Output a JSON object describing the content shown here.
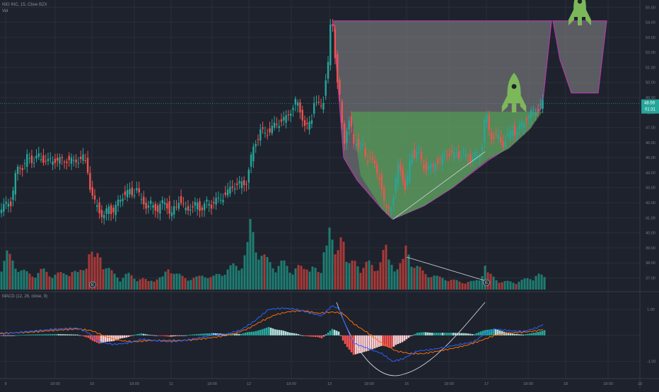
{
  "header": {
    "symbol": "NIO INC, 15, Cboe BZX",
    "volume_label": "Vol"
  },
  "macd_label": "MACD (12, 26, close, 9)",
  "colors": {
    "background": "#1e222d",
    "grid": "#2a2e39",
    "axis_text": "#787b86",
    "up": "#26a69a",
    "down": "#ef5350",
    "volume_up": "#1e7d72",
    "volume_down": "#a83a38",
    "macd_line": "#2962ff",
    "signal_line": "#ff6d00",
    "hist_pos_strong": "#26a69a",
    "hist_pos_weak": "#b2dfdb",
    "hist_neg_strong": "#ef5350",
    "hist_neg_weak": "#ffcdd2",
    "cup_fill": "#8c8c8c",
    "cup_outline": "#b03aa8",
    "green_fill": "#4caf50",
    "rocket": "#7cb85a",
    "price_tag": "#26a69a",
    "drawn_line": "#d1d4dc"
  },
  "icons": [
    "rocket-icon",
    "earnings-marker-icon"
  ],
  "chart_data": {
    "type": "candlestick",
    "y_ticks": [
      "55.00",
      "54.00",
      "53.00",
      "52.00",
      "51.00",
      "50.00",
      "49.00",
      "48.00",
      "47.00",
      "46.00",
      "45.00",
      "44.00",
      "43.00",
      "42.00",
      "41.00",
      "40.00",
      "39.00",
      "38.00",
      "37.00"
    ],
    "y_range": [
      36.6,
      55.2
    ],
    "x_ticks": [
      "9",
      "18:00",
      "10",
      "18:00",
      "11",
      "18:00",
      "12",
      "18:00",
      "13",
      "18:00",
      "16",
      "18:00",
      "17",
      "18:00",
      "18",
      "18:00",
      "19"
    ],
    "last_price": "48.59",
    "countdown": "01:31",
    "macd_ticks": [
      "1.00",
      "0.00",
      "-1.00"
    ],
    "macd_range": [
      -1.5,
      1.3
    ],
    "earnings_markers": [
      "E",
      "E"
    ],
    "price_path": [
      [
        0,
        41.3
      ],
      [
        4,
        41.6
      ],
      [
        8,
        41.7
      ],
      [
        10,
        41.9
      ],
      [
        13,
        42.1
      ],
      [
        17,
        42.0
      ],
      [
        21,
        43.0
      ],
      [
        25,
        44.2
      ],
      [
        30,
        44.5
      ],
      [
        35,
        44.3
      ],
      [
        40,
        45.0
      ],
      [
        45,
        44.9
      ],
      [
        50,
        44.8
      ],
      [
        55,
        45.1
      ],
      [
        60,
        44.9
      ],
      [
        65,
        44.9
      ],
      [
        70,
        44.7
      ],
      [
        75,
        44.8
      ],
      [
        80,
        44.9
      ],
      [
        85,
        44.8
      ],
      [
        90,
        44.8
      ],
      [
        95,
        44.9
      ],
      [
        100,
        44.8
      ],
      [
        105,
        44.7
      ],
      [
        110,
        44.9
      ],
      [
        115,
        44.8
      ],
      [
        120,
        45.0
      ],
      [
        125,
        44.5
      ],
      [
        128,
        43.3
      ],
      [
        131,
        42.5
      ],
      [
        135,
        42.0
      ],
      [
        140,
        41.8
      ],
      [
        145,
        41.2
      ],
      [
        148,
        40.9
      ],
      [
        152,
        41.4
      ],
      [
        156,
        41.9
      ],
      [
        160,
        41.3
      ],
      [
        165,
        41.6
      ],
      [
        170,
        42.2
      ],
      [
        175,
        42.5
      ],
      [
        180,
        42.5
      ],
      [
        185,
        42.8
      ],
      [
        190,
        42.6
      ],
      [
        195,
        42.9
      ],
      [
        200,
        42.2
      ],
      [
        205,
        42.1
      ],
      [
        210,
        41.6
      ],
      [
        215,
        41.9
      ],
      [
        220,
        41.8
      ],
      [
        225,
        41.5
      ],
      [
        230,
        41.9
      ],
      [
        235,
        42.1
      ],
      [
        240,
        41.7
      ],
      [
        243,
        40.8
      ],
      [
        246,
        41.5
      ],
      [
        250,
        41.7
      ],
      [
        255,
        42.3
      ],
      [
        260,
        41.7
      ],
      [
        265,
        41.5
      ],
      [
        270,
        41.8
      ],
      [
        275,
        41.6
      ],
      [
        280,
        42.0
      ],
      [
        285,
        41.6
      ],
      [
        290,
        41.8
      ],
      [
        295,
        42.0
      ],
      [
        300,
        41.8
      ],
      [
        305,
        42.2
      ],
      [
        310,
        42.1
      ],
      [
        315,
        42.3
      ],
      [
        320,
        42.6
      ],
      [
        325,
        42.7
      ],
      [
        330,
        43.1
      ],
      [
        335,
        43.2
      ],
      [
        340,
        43.2
      ],
      [
        345,
        43.3
      ],
      [
        350,
        43.4
      ],
      [
        355,
        44.5
      ],
      [
        358,
        45.3
      ],
      [
        362,
        46.0
      ],
      [
        366,
        46.3
      ],
      [
        370,
        46.8
      ],
      [
        375,
        46.6
      ],
      [
        380,
        46.7
      ],
      [
        385,
        46.9
      ],
      [
        390,
        47.1
      ],
      [
        395,
        47.3
      ],
      [
        400,
        47.5
      ],
      [
        405,
        47.5
      ],
      [
        410,
        48.0
      ],
      [
        415,
        48.3
      ],
      [
        418,
        48.4
      ],
      [
        420,
        48.8
      ],
      [
        425,
        48.3
      ],
      [
        430,
        47.6
      ],
      [
        434,
        46.8
      ],
      [
        438,
        47.2
      ],
      [
        442,
        47.5
      ],
      [
        446,
        48.9
      ],
      [
        450,
        48.5
      ],
      [
        455,
        48.3
      ],
      [
        460,
        49.0
      ],
      [
        463,
        50.7
      ],
      [
        466,
        51.3
      ],
      [
        468,
        53.3
      ],
      [
        470,
        54.0
      ],
      [
        473,
        53.7
      ],
      [
        476,
        51.5
      ],
      [
        480,
        49.5
      ],
      [
        483,
        48.8
      ],
      [
        486,
        46.7
      ],
      [
        488,
        45.8
      ],
      [
        492,
        47.0
      ],
      [
        496,
        47.6
      ],
      [
        500,
        46.4
      ],
      [
        503,
        45.4
      ],
      [
        506,
        46.3
      ],
      [
        510,
        45.6
      ],
      [
        515,
        45.7
      ],
      [
        520,
        44.6
      ],
      [
        525,
        45.2
      ],
      [
        530,
        44.6
      ],
      [
        535,
        43.9
      ],
      [
        538,
        43.8
      ],
      [
        541,
        43.2
      ],
      [
        544,
        42.2
      ],
      [
        547,
        41.4
      ],
      [
        550,
        41.6
      ],
      [
        553,
        41.7
      ],
      [
        557,
        42.1
      ],
      [
        560,
        43.1
      ],
      [
        565,
        44.5
      ],
      [
        570,
        44.0
      ],
      [
        575,
        42.8
      ],
      [
        579,
        43.8
      ],
      [
        583,
        45.4
      ],
      [
        588,
        45.2
      ],
      [
        593,
        45.5
      ],
      [
        598,
        44.7
      ],
      [
        603,
        44.3
      ],
      [
        608,
        44.4
      ],
      [
        613,
        44.2
      ],
      [
        618,
        44.9
      ],
      [
        623,
        44.7
      ],
      [
        628,
        45.0
      ],
      [
        633,
        45.4
      ],
      [
        638,
        45.2
      ],
      [
        643,
        45.1
      ],
      [
        648,
        45.3
      ],
      [
        653,
        45.1
      ],
      [
        658,
        45.1
      ],
      [
        663,
        45.0
      ],
      [
        668,
        45.0
      ],
      [
        673,
        45.1
      ],
      [
        678,
        45.2
      ],
      [
        682,
        45.4
      ],
      [
        685,
        46.6
      ],
      [
        688,
        48.1
      ],
      [
        690,
        47.6
      ],
      [
        694,
        46.6
      ],
      [
        698,
        46.3
      ],
      [
        702,
        46.6
      ],
      [
        706,
        46.3
      ],
      [
        710,
        46.0
      ],
      [
        714,
        45.9
      ],
      [
        718,
        46.4
      ],
      [
        722,
        46.4
      ],
      [
        726,
        46.9
      ],
      [
        730,
        46.7
      ],
      [
        734,
        46.8
      ],
      [
        738,
        47.1
      ],
      [
        742,
        47.3
      ],
      [
        746,
        47.7
      ],
      [
        750,
        47.8
      ],
      [
        754,
        48.0
      ],
      [
        758,
        48.1
      ],
      [
        762,
        48.3
      ],
      [
        766,
        48.5
      ],
      [
        770,
        48.6
      ]
    ],
    "volume_path": [
      [
        0,
        0.25
      ],
      [
        10,
        0.45
      ],
      [
        20,
        0.35
      ],
      [
        30,
        0.25
      ],
      [
        40,
        0.2
      ],
      [
        50,
        0.2
      ],
      [
        60,
        0.25
      ],
      [
        70,
        0.2
      ],
      [
        80,
        0.2
      ],
      [
        90,
        0.2
      ],
      [
        100,
        0.25
      ],
      [
        110,
        0.2
      ],
      [
        120,
        0.3
      ],
      [
        125,
        0.5
      ],
      [
        130,
        0.45
      ],
      [
        135,
        0.35
      ],
      [
        140,
        0.5
      ],
      [
        150,
        0.3
      ],
      [
        160,
        0.2
      ],
      [
        170,
        0.15
      ],
      [
        180,
        0.2
      ],
      [
        190,
        0.15
      ],
      [
        200,
        0.15
      ],
      [
        210,
        0.1
      ],
      [
        220,
        0.15
      ],
      [
        230,
        0.15
      ],
      [
        240,
        0.3
      ],
      [
        250,
        0.2
      ],
      [
        260,
        0.15
      ],
      [
        270,
        0.15
      ],
      [
        280,
        0.15
      ],
      [
        290,
        0.2
      ],
      [
        300,
        0.15
      ],
      [
        310,
        0.2
      ],
      [
        320,
        0.25
      ],
      [
        330,
        0.3
      ],
      [
        340,
        0.3
      ],
      [
        350,
        0.55
      ],
      [
        355,
        0.9
      ],
      [
        360,
        0.6
      ],
      [
        370,
        0.45
      ],
      [
        380,
        0.35
      ],
      [
        390,
        0.3
      ],
      [
        400,
        0.35
      ],
      [
        410,
        0.25
      ],
      [
        420,
        0.3
      ],
      [
        430,
        0.25
      ],
      [
        440,
        0.35
      ],
      [
        450,
        0.2
      ],
      [
        455,
        0.2
      ],
      [
        460,
        0.75
      ],
      [
        465,
        0.95
      ],
      [
        470,
        0.6
      ],
      [
        475,
        0.35
      ],
      [
        480,
        0.55
      ],
      [
        485,
        1.0
      ],
      [
        490,
        0.4
      ],
      [
        495,
        0.3
      ],
      [
        500,
        0.35
      ],
      [
        510,
        0.3
      ],
      [
        520,
        0.35
      ],
      [
        530,
        0.25
      ],
      [
        540,
        0.45
      ],
      [
        545,
        0.55
      ],
      [
        550,
        0.35
      ],
      [
        560,
        0.3
      ],
      [
        570,
        0.35
      ],
      [
        575,
        0.55
      ],
      [
        580,
        0.4
      ],
      [
        590,
        0.3
      ],
      [
        600,
        0.2
      ],
      [
        610,
        0.2
      ],
      [
        620,
        0.15
      ],
      [
        630,
        0.15
      ],
      [
        640,
        0.12
      ],
      [
        650,
        0.1
      ],
      [
        660,
        0.1
      ],
      [
        670,
        0.1
      ],
      [
        680,
        0.15
      ],
      [
        685,
        0.35
      ],
      [
        690,
        0.2
      ],
      [
        700,
        0.15
      ],
      [
        710,
        0.1
      ],
      [
        720,
        0.1
      ],
      [
        730,
        0.1
      ],
      [
        740,
        0.12
      ],
      [
        750,
        0.15
      ],
      [
        760,
        0.2
      ],
      [
        770,
        0.15
      ]
    ],
    "macd_path": [
      [
        0,
        0.05
      ],
      [
        40,
        0.15
      ],
      [
        80,
        0.25
      ],
      [
        110,
        0.28
      ],
      [
        125,
        0.1
      ],
      [
        140,
        -0.25
      ],
      [
        160,
        -0.35
      ],
      [
        180,
        -0.3
      ],
      [
        200,
        -0.15
      ],
      [
        220,
        -0.2
      ],
      [
        240,
        -0.25
      ],
      [
        260,
        -0.2
      ],
      [
        280,
        -0.1
      ],
      [
        300,
        0.0
      ],
      [
        320,
        0.05
      ],
      [
        340,
        0.2
      ],
      [
        360,
        0.55
      ],
      [
        380,
        1.0
      ],
      [
        400,
        1.05
      ],
      [
        420,
        1.0
      ],
      [
        440,
        0.85
      ],
      [
        455,
        0.75
      ],
      [
        470,
        1.15
      ],
      [
        480,
        1.0
      ],
      [
        490,
        0.3
      ],
      [
        500,
        -0.3
      ],
      [
        520,
        -0.5
      ],
      [
        540,
        -0.7
      ],
      [
        555,
        -1.0
      ],
      [
        570,
        -0.9
      ],
      [
        590,
        -0.6
      ],
      [
        610,
        -0.55
      ],
      [
        630,
        -0.45
      ],
      [
        650,
        -0.35
      ],
      [
        670,
        -0.25
      ],
      [
        685,
        0.05
      ],
      [
        700,
        0.25
      ],
      [
        720,
        0.18
      ],
      [
        740,
        0.15
      ],
      [
        760,
        0.3
      ],
      [
        770,
        0.45
      ]
    ],
    "signal_path": [
      [
        0,
        0.08
      ],
      [
        40,
        0.12
      ],
      [
        80,
        0.2
      ],
      [
        110,
        0.25
      ],
      [
        130,
        0.18
      ],
      [
        150,
        -0.05
      ],
      [
        170,
        -0.2
      ],
      [
        190,
        -0.25
      ],
      [
        210,
        -0.2
      ],
      [
        230,
        -0.2
      ],
      [
        250,
        -0.2
      ],
      [
        270,
        -0.18
      ],
      [
        290,
        -0.12
      ],
      [
        310,
        -0.05
      ],
      [
        330,
        0.05
      ],
      [
        350,
        0.25
      ],
      [
        370,
        0.55
      ],
      [
        390,
        0.8
      ],
      [
        410,
        0.92
      ],
      [
        430,
        0.95
      ],
      [
        450,
        0.85
      ],
      [
        470,
        0.9
      ],
      [
        485,
        0.85
      ],
      [
        500,
        0.45
      ],
      [
        520,
        0.1
      ],
      [
        540,
        -0.3
      ],
      [
        560,
        -0.6
      ],
      [
        580,
        -0.7
      ],
      [
        600,
        -0.7
      ],
      [
        620,
        -0.6
      ],
      [
        640,
        -0.5
      ],
      [
        660,
        -0.38
      ],
      [
        680,
        -0.2
      ],
      [
        700,
        0.0
      ],
      [
        720,
        0.1
      ],
      [
        740,
        0.12
      ],
      [
        760,
        0.18
      ],
      [
        770,
        0.25
      ]
    ]
  }
}
